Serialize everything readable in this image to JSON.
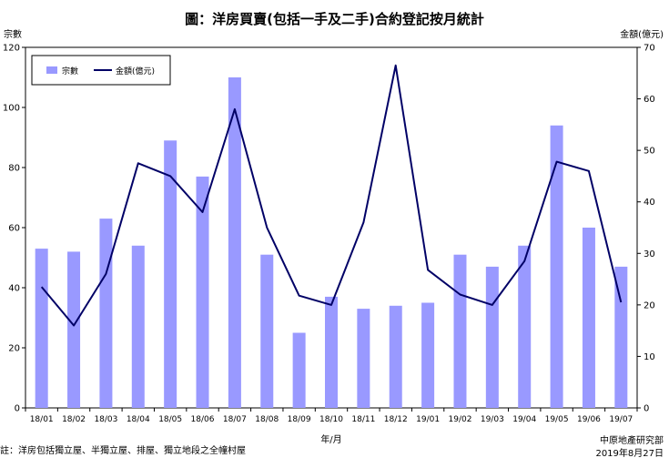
{
  "chart_data": {
    "type": "bar",
    "title": "圖：洋房買賣(包括一手及二手)合約登記按月統計",
    "ylabel_left": "宗數",
    "ylabel_right": "金額(億元)",
    "xlabel": "年/月",
    "categories": [
      "18/01",
      "18/02",
      "18/03",
      "18/04",
      "18/05",
      "18/06",
      "18/07",
      "18/08",
      "18/09",
      "18/10",
      "18/11",
      "18/12",
      "19/01",
      "19/02",
      "19/03",
      "19/04",
      "19/05",
      "19/06",
      "19/07"
    ],
    "series": [
      {
        "name": "宗數",
        "type": "bar",
        "axis": "left",
        "color": "#9999ff",
        "values": [
          53,
          52,
          63,
          54,
          89,
          77,
          110,
          51,
          25,
          37,
          33,
          34,
          35,
          51,
          47,
          54,
          94,
          60,
          47
        ]
      },
      {
        "name": "金額(億元)",
        "type": "line",
        "axis": "right",
        "color": "#000066",
        "values": [
          23.5,
          16,
          26,
          47.5,
          45,
          38,
          58,
          35,
          21.8,
          20,
          36,
          66.5,
          26.8,
          22,
          20,
          28.5,
          47.8,
          46,
          20.5
        ]
      }
    ],
    "ylim_left": [
      0,
      120
    ],
    "yticks_left": [
      0,
      20,
      40,
      60,
      80,
      100,
      120
    ],
    "ylim_right": [
      0,
      70
    ],
    "yticks_right": [
      0,
      10,
      20,
      30,
      40,
      50,
      60,
      70
    ],
    "grid": false,
    "legend_position": "top-left"
  },
  "footer": {
    "note": "註：洋房包括獨立屋、半獨立屋、排屋、獨立地段之全幢村屋",
    "source": "中原地產研究部",
    "date": "2019年8月27日"
  }
}
